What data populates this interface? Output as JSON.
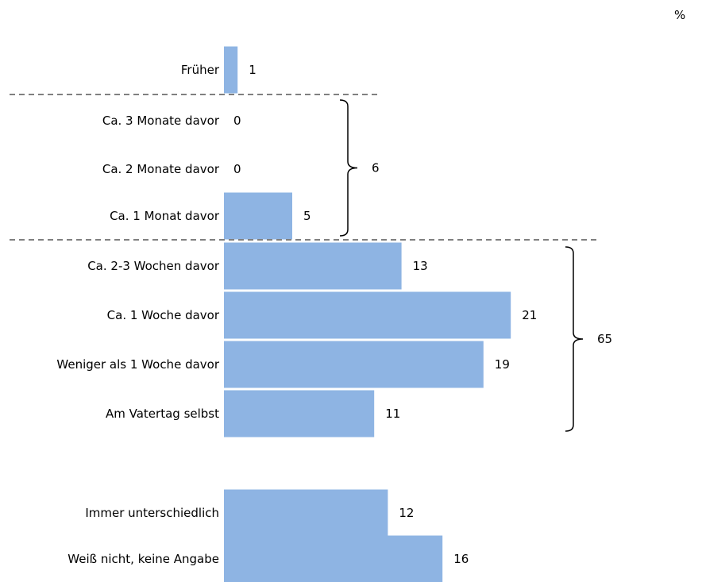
{
  "chart_data": {
    "type": "bar",
    "orientation": "horizontal",
    "unit": "%",
    "categories": [
      "Früher",
      "Ca. 3 Monate davor",
      "Ca. 2 Monate davor",
      "Ca. 1 Monat davor",
      "Ca. 2-3 Wochen davor",
      "Ca. 1 Woche davor",
      "Weniger als 1 Woche davor",
      "Am Vatertag selbst",
      "Immer unterschiedlich",
      "Weiß nicht, keine Angabe"
    ],
    "values": [
      1,
      0,
      0,
      5,
      13,
      21,
      19,
      11,
      12,
      16
    ],
    "groups": [
      {
        "label": "6",
        "from": 1,
        "to": 3
      },
      {
        "label": "65",
        "from": 4,
        "to": 7
      }
    ],
    "bar_color": "#8eb4e3",
    "grid": false
  }
}
